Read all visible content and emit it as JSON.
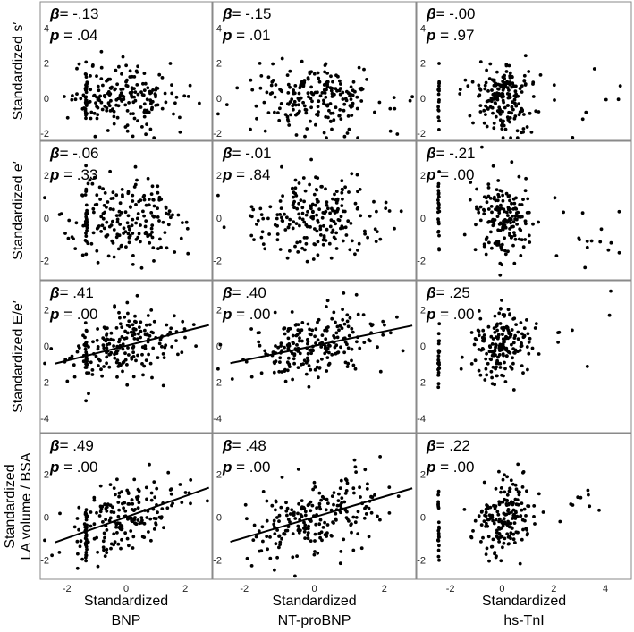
{
  "figure": {
    "row_labels": [
      {
        "lines": [
          "Standardized s′"
        ]
      },
      {
        "lines": [
          "Standardized e′"
        ]
      },
      {
        "lines": [
          "Standardized E/e′"
        ]
      },
      {
        "lines": [
          "Standardized",
          "LA volume / BSA"
        ]
      }
    ],
    "column_labels": [
      {
        "lines": [
          "Standardized",
          "BNP"
        ]
      },
      {
        "lines": [
          "Standardized",
          "NT-proBNP"
        ]
      },
      {
        "lines": [
          "Standardized",
          "hs-TnI"
        ]
      }
    ],
    "beta_symbol": "β",
    "p_symbol": "p"
  },
  "chart_data": [
    {
      "type": "scatter",
      "panel": "s-BNP",
      "row": 0,
      "col": 0,
      "ylabel": "Standardized s′",
      "xlabel": "Standardized BNP",
      "xlim": [
        -2.9,
        2.9
      ],
      "ylim": [
        -2.4,
        5.5
      ],
      "xticks": [
        -2,
        0,
        2
      ],
      "yticks": [
        -2,
        0,
        2,
        4
      ],
      "beta": "= -.13",
      "p": "= .04",
      "regression": null
    },
    {
      "type": "scatter",
      "panel": "s-NTproBNP",
      "row": 0,
      "col": 1,
      "ylabel": "Standardized s′",
      "xlabel": "Standardized NT-proBNP",
      "xlim": [
        -2.9,
        2.9
      ],
      "ylim": [
        -2.4,
        5.5
      ],
      "xticks": [
        -2,
        0,
        2
      ],
      "yticks": [
        -2,
        0,
        2,
        4
      ],
      "beta": "= -.15",
      "p": "= .01",
      "regression": null
    },
    {
      "type": "scatter",
      "panel": "s-hsTnI",
      "row": 0,
      "col": 2,
      "ylabel": "Standardized s′",
      "xlabel": "Standardized hs-TnI",
      "xlim": [
        -3.3,
        5.0
      ],
      "ylim": [
        -2.4,
        5.5
      ],
      "xticks": [
        -2,
        0,
        2,
        4
      ],
      "yticks": [
        -2,
        0,
        2,
        4
      ],
      "beta": "= -.00",
      "p": "= .97",
      "regression": null
    },
    {
      "type": "scatter",
      "panel": "e-BNP",
      "row": 1,
      "col": 0,
      "ylabel": "Standardized e′",
      "xlabel": "Standardized BNP",
      "xlim": [
        -2.9,
        2.9
      ],
      "ylim": [
        -2.9,
        3.6
      ],
      "xticks": [
        -2,
        0,
        2
      ],
      "yticks": [
        -2,
        0,
        2
      ],
      "beta": "= -.06",
      "p": "= .33",
      "regression": null
    },
    {
      "type": "scatter",
      "panel": "e-NTproBNP",
      "row": 1,
      "col": 1,
      "ylabel": "Standardized e′",
      "xlabel": "Standardized NT-proBNP",
      "xlim": [
        -2.9,
        2.9
      ],
      "ylim": [
        -2.9,
        3.6
      ],
      "xticks": [
        -2,
        0,
        2
      ],
      "yticks": [
        -2,
        0,
        2
      ],
      "beta": "= -.01",
      "p": "= .84",
      "regression": null
    },
    {
      "type": "scatter",
      "panel": "e-hsTnI",
      "row": 1,
      "col": 2,
      "ylabel": "Standardized e′",
      "xlabel": "Standardized hs-TnI",
      "xlim": [
        -3.3,
        5.0
      ],
      "ylim": [
        -2.9,
        3.6
      ],
      "xticks": [
        -2,
        0,
        2,
        4
      ],
      "yticks": [
        -2,
        0,
        2
      ],
      "beta": "= -.21",
      "p": "= .00",
      "regression": null
    },
    {
      "type": "scatter",
      "panel": "Ee-BNP",
      "row": 2,
      "col": 0,
      "ylabel": "Standardized E/e′",
      "xlabel": "Standardized BNP",
      "xlim": [
        -2.9,
        2.9
      ],
      "ylim": [
        -4.8,
        3.6
      ],
      "xticks": [
        -2,
        0,
        2
      ],
      "yticks": [
        -4,
        -2,
        0,
        2
      ],
      "beta": "= .41",
      "p": "= .00",
      "regression": {
        "slope": 0.41,
        "x_range": [
          -2.4,
          2.8
        ]
      }
    },
    {
      "type": "scatter",
      "panel": "Ee-NTproBNP",
      "row": 2,
      "col": 1,
      "ylabel": "Standardized E/e′",
      "xlabel": "Standardized NT-proBNP",
      "xlim": [
        -2.9,
        2.9
      ],
      "ylim": [
        -4.8,
        3.6
      ],
      "xticks": [
        -2,
        0,
        2
      ],
      "yticks": [
        -4,
        -2,
        0,
        2
      ],
      "beta": "= .40",
      "p": "= .00",
      "regression": {
        "slope": 0.4,
        "x_range": [
          -2.4,
          2.8
        ]
      }
    },
    {
      "type": "scatter",
      "panel": "Ee-hsTnI",
      "row": 2,
      "col": 2,
      "ylabel": "Standardized E/e′",
      "xlabel": "Standardized hs-TnI",
      "xlim": [
        -3.3,
        5.0
      ],
      "ylim": [
        -4.8,
        3.6
      ],
      "xticks": [
        -2,
        0,
        2,
        4
      ],
      "yticks": [
        -4,
        -2,
        0,
        2
      ],
      "beta": "= .25",
      "p": "= .00",
      "regression": null
    },
    {
      "type": "scatter",
      "panel": "LA-BNP",
      "row": 3,
      "col": 0,
      "ylabel": "Standardized LA volume / BSA",
      "xlabel": "Standardized BNP",
      "xlim": [
        -2.9,
        2.9
      ],
      "ylim": [
        -2.9,
        3.9
      ],
      "xticks": [
        -2,
        0,
        2
      ],
      "yticks": [
        -2,
        0,
        2
      ],
      "beta": "= .49",
      "p": "= .00",
      "regression": {
        "slope": 0.49,
        "x_range": [
          -2.4,
          2.8
        ]
      }
    },
    {
      "type": "scatter",
      "panel": "LA-NTproBNP",
      "row": 3,
      "col": 1,
      "ylabel": "Standardized LA volume / BSA",
      "xlabel": "Standardized NT-proBNP",
      "xlim": [
        -2.9,
        2.9
      ],
      "ylim": [
        -2.9,
        3.9
      ],
      "xticks": [
        -2,
        0,
        2
      ],
      "yticks": [
        -2,
        0,
        2
      ],
      "beta": "= .48",
      "p": "= .00",
      "regression": {
        "slope": 0.48,
        "x_range": [
          -2.4,
          2.8
        ]
      }
    },
    {
      "type": "scatter",
      "panel": "LA-hsTnI",
      "row": 3,
      "col": 2,
      "ylabel": "Standardized LA volume / BSA",
      "xlabel": "Standardized hs-TnI",
      "xlim": [
        -3.3,
        5.0
      ],
      "ylim": [
        -2.9,
        3.9
      ],
      "xticks": [
        -2,
        0,
        2,
        4
      ],
      "yticks": [
        -2,
        0,
        2
      ],
      "beta": "= .22",
      "p": "= .00",
      "regression": null
    }
  ]
}
